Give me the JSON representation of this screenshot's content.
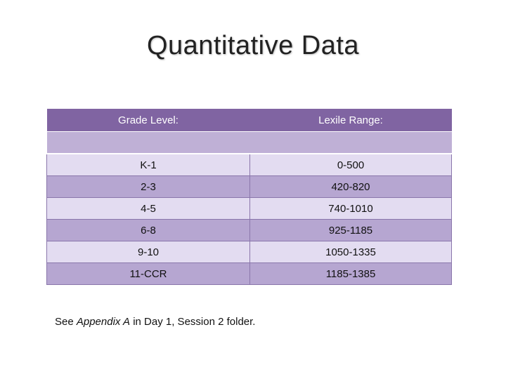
{
  "title": "Quantitative Data",
  "table": {
    "headers": [
      "Grade Level:",
      "Lexile Range:"
    ],
    "rows": [
      {
        "grade": "K-1",
        "range": "0-500"
      },
      {
        "grade": "2-3",
        "range": "420-820"
      },
      {
        "grade": "4-5",
        "range": "740-1010"
      },
      {
        "grade": "6-8",
        "range": "925-1185"
      },
      {
        "grade": "9-10",
        "range": "1050-1335"
      },
      {
        "grade": "11-CCR",
        "range": "1185-1385"
      }
    ]
  },
  "note": {
    "prefix": "See ",
    "emphasis": "Appendix A",
    "suffix": " in Day 1, Session 2 folder."
  },
  "colors": {
    "header": "#8064a2",
    "spacer": "#bfb0d6",
    "row_light": "#e3dcf1",
    "row_dark": "#b6a6d1"
  }
}
